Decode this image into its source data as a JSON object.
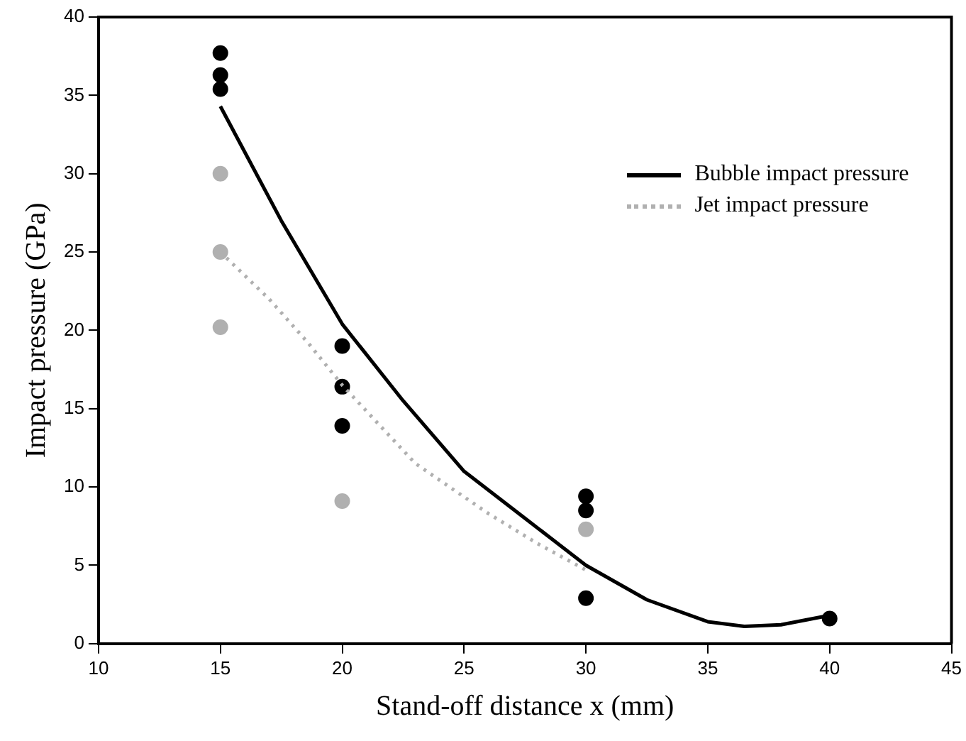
{
  "chart_data": {
    "type": "scatter",
    "xlabel": "Stand-off distance x (mm)",
    "ylabel": "Impact pressure (GPa)",
    "xlim": [
      10,
      45
    ],
    "xticks": [
      10,
      15,
      20,
      25,
      30,
      35,
      40,
      45
    ],
    "ylim": [
      0,
      40
    ],
    "yticks": [
      0,
      5,
      10,
      15,
      20,
      25,
      30,
      35,
      40
    ],
    "grid": false,
    "legend": "top right",
    "series": [
      {
        "name": "Bubble impact pressure",
        "type": "line",
        "color": "#000000",
        "line_style": "solid",
        "marker": "none",
        "x": [
          15,
          17.5,
          20,
          22.5,
          25,
          27.5,
          30,
          32.5,
          35,
          36.5,
          38,
          40
        ],
        "values": [
          34.3,
          27,
          20.4,
          15.5,
          11,
          8,
          5,
          2.8,
          1.4,
          1.1,
          1.2,
          1.8
        ]
      },
      {
        "name": "Jet impact pressure",
        "type": "line",
        "color": "#b0b0b0",
        "line_style": "dotted",
        "marker": "none",
        "x": [
          15,
          17,
          18.6,
          20,
          23,
          26,
          28,
          30
        ],
        "values": [
          25,
          22,
          19.2,
          16.5,
          11.5,
          8.3,
          6.4,
          4.7
        ]
      },
      {
        "type": "scatter",
        "color": "#000000",
        "marker": "circle",
        "x": [
          15,
          15,
          15,
          20,
          20,
          20,
          30,
          30,
          30,
          40
        ],
        "values": [
          37.7,
          36.3,
          35.4,
          19,
          16.4,
          13.9,
          9.4,
          8.5,
          2.9,
          1.6
        ]
      },
      {
        "type": "scatter",
        "color": "#b0b0b0",
        "marker": "circle",
        "x": [
          15,
          15,
          15,
          20,
          30
        ],
        "values": [
          30,
          25,
          20.2,
          9.1,
          7.3
        ]
      }
    ]
  }
}
